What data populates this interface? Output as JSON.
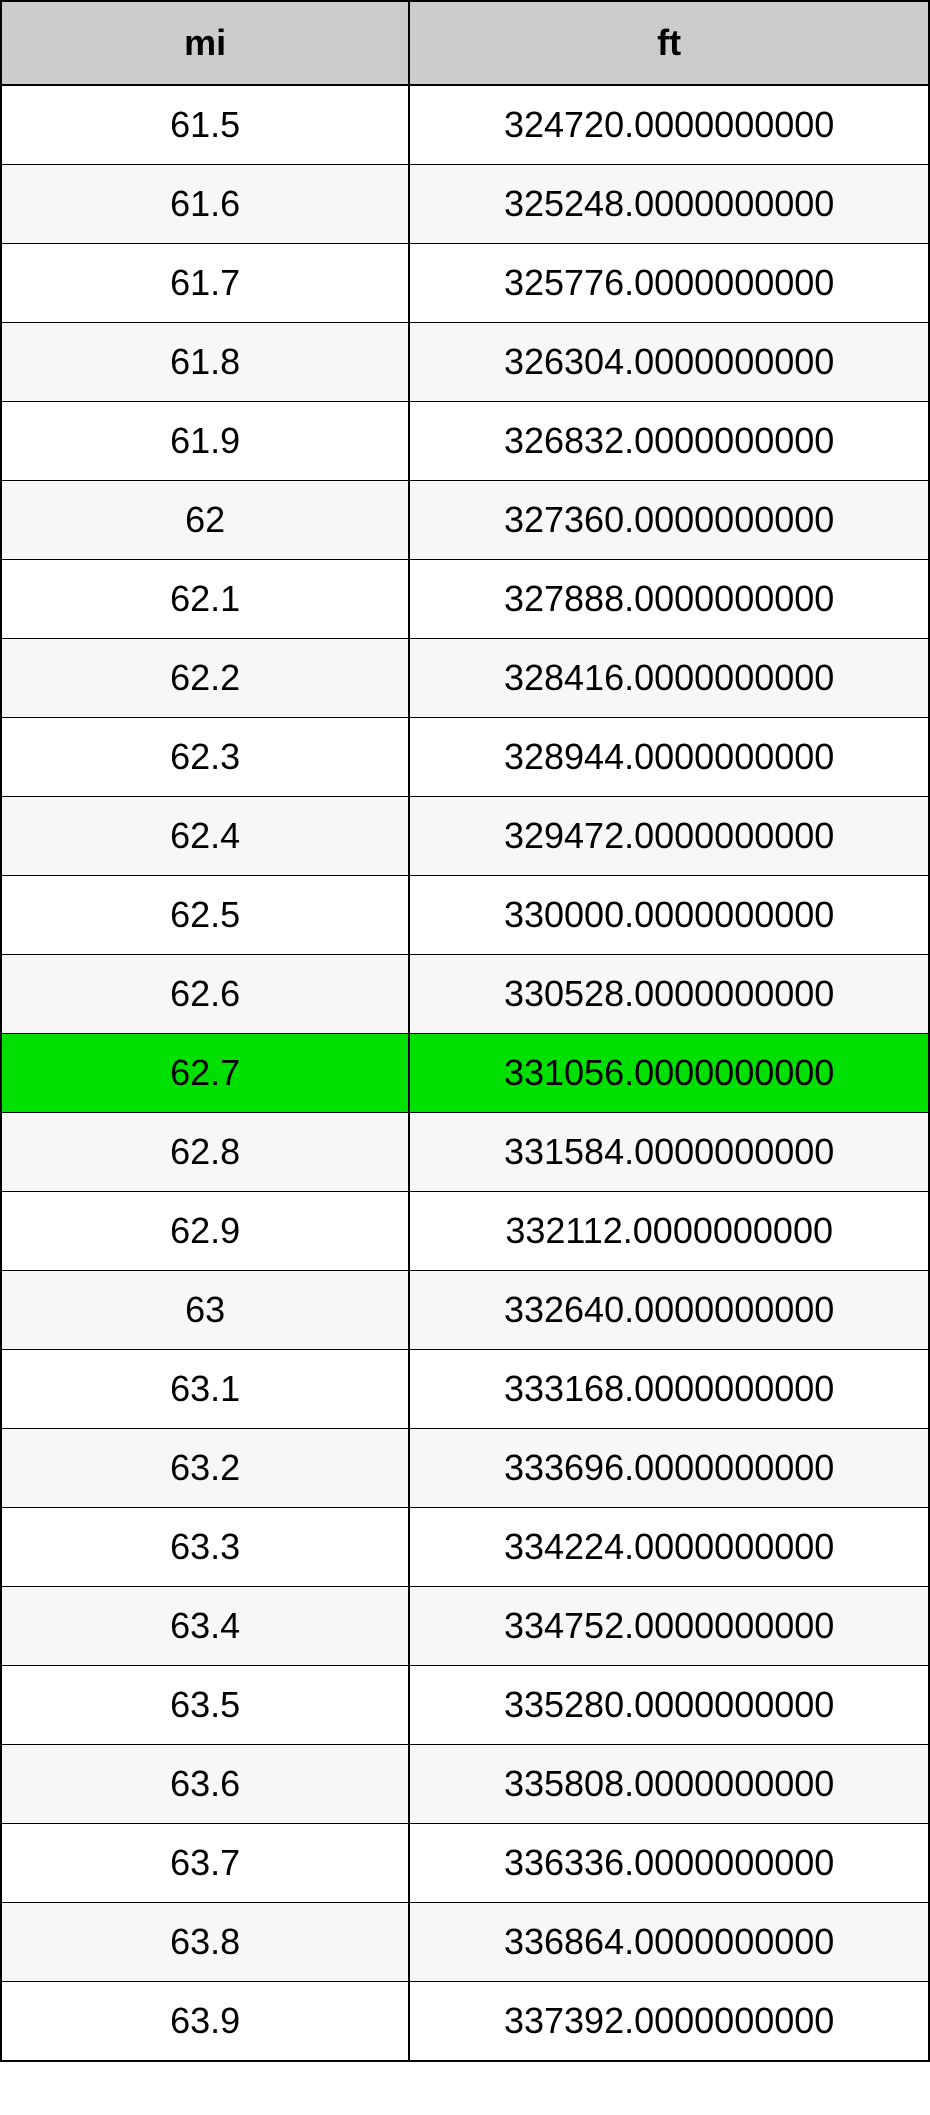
{
  "table": {
    "type": "table",
    "columns": [
      "mi",
      "ft"
    ],
    "column_widths_pct": [
      44,
      56
    ],
    "header_bg": "#cccccc",
    "header_font_weight": "bold",
    "header_fontsize": 36,
    "cell_fontsize": 36,
    "text_color": "#000000",
    "border_color": "#000000",
    "outer_border_width": 2,
    "inner_row_border_width": 1,
    "col_border_width": 2,
    "row_bg_white": "#ffffff",
    "row_bg_alt": "#f7f7f7",
    "highlight_bg": "#00e000",
    "text_align": "center",
    "rows": [
      {
        "mi": "61.5",
        "ft": "324720.0000000000",
        "alt": false,
        "highlight": false
      },
      {
        "mi": "61.6",
        "ft": "325248.0000000000",
        "alt": true,
        "highlight": false
      },
      {
        "mi": "61.7",
        "ft": "325776.0000000000",
        "alt": false,
        "highlight": false
      },
      {
        "mi": "61.8",
        "ft": "326304.0000000000",
        "alt": true,
        "highlight": false
      },
      {
        "mi": "61.9",
        "ft": "326832.0000000000",
        "alt": false,
        "highlight": false
      },
      {
        "mi": "62",
        "ft": "327360.0000000000",
        "alt": true,
        "highlight": false
      },
      {
        "mi": "62.1",
        "ft": "327888.0000000000",
        "alt": false,
        "highlight": false
      },
      {
        "mi": "62.2",
        "ft": "328416.0000000000",
        "alt": true,
        "highlight": false
      },
      {
        "mi": "62.3",
        "ft": "328944.0000000000",
        "alt": false,
        "highlight": false
      },
      {
        "mi": "62.4",
        "ft": "329472.0000000000",
        "alt": true,
        "highlight": false
      },
      {
        "mi": "62.5",
        "ft": "330000.0000000000",
        "alt": false,
        "highlight": false
      },
      {
        "mi": "62.6",
        "ft": "330528.0000000000",
        "alt": true,
        "highlight": false
      },
      {
        "mi": "62.7",
        "ft": "331056.0000000000",
        "alt": false,
        "highlight": true
      },
      {
        "mi": "62.8",
        "ft": "331584.0000000000",
        "alt": true,
        "highlight": false
      },
      {
        "mi": "62.9",
        "ft": "332112.0000000000",
        "alt": false,
        "highlight": false
      },
      {
        "mi": "63",
        "ft": "332640.0000000000",
        "alt": true,
        "highlight": false
      },
      {
        "mi": "63.1",
        "ft": "333168.0000000000",
        "alt": false,
        "highlight": false
      },
      {
        "mi": "63.2",
        "ft": "333696.0000000000",
        "alt": true,
        "highlight": false
      },
      {
        "mi": "63.3",
        "ft": "334224.0000000000",
        "alt": false,
        "highlight": false
      },
      {
        "mi": "63.4",
        "ft": "334752.0000000000",
        "alt": true,
        "highlight": false
      },
      {
        "mi": "63.5",
        "ft": "335280.0000000000",
        "alt": false,
        "highlight": false
      },
      {
        "mi": "63.6",
        "ft": "335808.0000000000",
        "alt": true,
        "highlight": false
      },
      {
        "mi": "63.7",
        "ft": "336336.0000000000",
        "alt": false,
        "highlight": false
      },
      {
        "mi": "63.8",
        "ft": "336864.0000000000",
        "alt": true,
        "highlight": false
      },
      {
        "mi": "63.9",
        "ft": "337392.0000000000",
        "alt": false,
        "highlight": false
      }
    ]
  }
}
